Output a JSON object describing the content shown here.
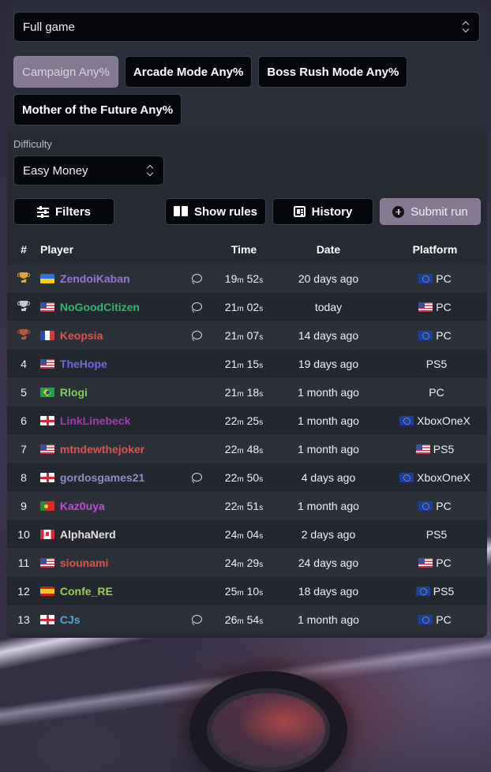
{
  "category_select": {
    "value": "Full game"
  },
  "categories": [
    {
      "label": "Campaign Any%",
      "active": true
    },
    {
      "label": "Arcade Mode Any%",
      "active": false
    },
    {
      "label": "Boss Rush Mode Any%",
      "active": false
    },
    {
      "label": "Mother of the Future Any%",
      "active": false
    }
  ],
  "difficulty": {
    "label": "Difficulty",
    "value": "Easy Money"
  },
  "toolbar": {
    "filters": "Filters",
    "show_rules": "Show rules",
    "history": "History",
    "submit_run": "Submit run"
  },
  "table": {
    "headers": {
      "rank": "#",
      "player": "Player",
      "time": "Time",
      "date": "Date",
      "platform": "Platform"
    },
    "rows": [
      {
        "rank": "",
        "trophy": "gold",
        "flag": "ua",
        "player": "ZendoiKaban",
        "color": "#9b72d6",
        "comment": true,
        "time": [
          "19",
          "m",
          " 52",
          "s"
        ],
        "date": "20 days ago",
        "plat_flag": "eu",
        "platform": "PC"
      },
      {
        "rank": "",
        "trophy": "silver",
        "flag": "us",
        "player": "NoGoodCitizen",
        "color": "#2fb872",
        "comment": true,
        "time": [
          "21",
          "m",
          " 02",
          "s"
        ],
        "date": "today",
        "plat_flag": "us",
        "platform": "PC"
      },
      {
        "rank": "",
        "trophy": "bronze",
        "flag": "fr",
        "player": "Keopsia",
        "color": "#e2504a",
        "comment": true,
        "time": [
          "21",
          "m",
          " 07",
          "s"
        ],
        "date": "14 days ago",
        "plat_flag": "eu",
        "platform": "PC"
      },
      {
        "rank": "4",
        "trophy": "",
        "flag": "us",
        "player": "TheHope",
        "color": "#6b6ae0",
        "comment": false,
        "time": [
          "21",
          "m",
          " 15",
          "s"
        ],
        "date": "19 days ago",
        "plat_flag": "",
        "platform": "PS5"
      },
      {
        "rank": "5",
        "trophy": "",
        "flag": "br",
        "player": "Rlogi",
        "color": "#7fd05a",
        "comment": false,
        "time": [
          "21",
          "m",
          " 18",
          "s"
        ],
        "date": "1 month ago",
        "plat_flag": "",
        "platform": "PC"
      },
      {
        "rank": "6",
        "trophy": "",
        "flag": "en",
        "player": "LinkLinebeck",
        "color": "#a33bb0",
        "comment": false,
        "time": [
          "22",
          "m",
          " 25",
          "s"
        ],
        "date": "1 month ago",
        "plat_flag": "eu",
        "platform": "XboxOneX"
      },
      {
        "rank": "7",
        "trophy": "",
        "flag": "us",
        "player": "mtndewthejoker",
        "color": "#e0524c",
        "comment": false,
        "time": [
          "22",
          "m",
          " 48",
          "s"
        ],
        "date": "1 month ago",
        "plat_flag": "us",
        "platform": "PS5"
      },
      {
        "rank": "8",
        "trophy": "",
        "flag": "en",
        "player": "gordosgames21",
        "color": "#8b8fc8",
        "comment": true,
        "time": [
          "22",
          "m",
          " 50",
          "s"
        ],
        "date": "4 days ago",
        "plat_flag": "eu",
        "platform": "XboxOneX"
      },
      {
        "rank": "9",
        "trophy": "",
        "flag": "pt",
        "player": "Kaz0uya",
        "color": "#c24ad8",
        "comment": false,
        "time": [
          "22",
          "m",
          " 51",
          "s"
        ],
        "date": "1 month ago",
        "plat_flag": "eu",
        "platform": "PC"
      },
      {
        "rank": "10",
        "trophy": "",
        "flag": "ca",
        "player": "AlphaNerd",
        "color": "#e8e0da",
        "comment": false,
        "time": [
          "24",
          "m",
          " 04",
          "s"
        ],
        "date": "2 days ago",
        "plat_flag": "",
        "platform": "PS5"
      },
      {
        "rank": "11",
        "trophy": "",
        "flag": "us",
        "player": "siounami",
        "color": "#e0524c",
        "comment": false,
        "time": [
          "24",
          "m",
          " 29",
          "s"
        ],
        "date": "24 days ago",
        "plat_flag": "us",
        "platform": "PC"
      },
      {
        "rank": "12",
        "trophy": "",
        "flag": "es",
        "player": "Confe_RE",
        "color": "#9ad04a",
        "comment": false,
        "time": [
          "25",
          "m",
          " 10",
          "s"
        ],
        "date": "18 days ago",
        "plat_flag": "eu",
        "platform": "PS5"
      },
      {
        "rank": "13",
        "trophy": "",
        "flag": "en",
        "player": "CJs",
        "color": "#4aa8d8",
        "comment": true,
        "time": [
          "26",
          "m",
          " 54",
          "s"
        ],
        "date": "1 month ago",
        "plat_flag": "eu",
        "platform": "PC"
      }
    ]
  },
  "colors": {
    "accent": "#857992",
    "panel": "#262a33",
    "button_bg": "#05070a"
  }
}
